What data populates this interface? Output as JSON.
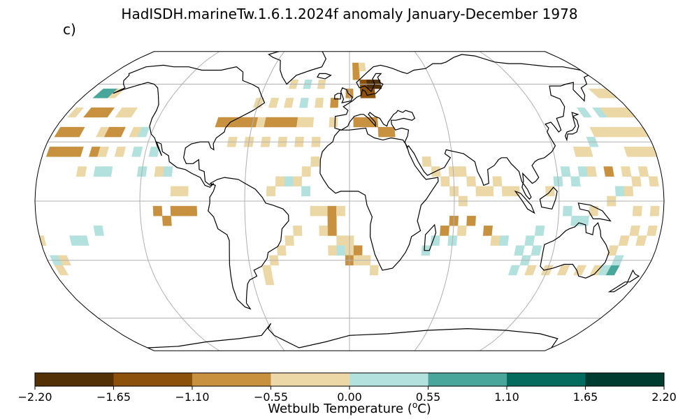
{
  "title": "HadISDH.marineTw.1.6.1.2024f anomaly January-December 1978",
  "panel_label": "c)",
  "map": {
    "projection": "Robinson",
    "graticule": "on",
    "land": "outline",
    "missing_data": "blank",
    "grid_cells": [
      {
        "lon": -170,
        "lat": 55,
        "value": 0.8
      },
      {
        "lon": -165,
        "lat": 55,
        "value": 0.8
      },
      {
        "lon": -160,
        "lat": 55,
        "value": -0.3
      },
      {
        "lon": -175,
        "lat": 45,
        "value": -0.3
      },
      {
        "lon": -165,
        "lat": 45,
        "value": -0.7
      },
      {
        "lon": -160,
        "lat": 45,
        "value": -0.7
      },
      {
        "lon": -155,
        "lat": 45,
        "value": -0.7
      },
      {
        "lon": -145,
        "lat": 45,
        "value": -0.3
      },
      {
        "lon": -140,
        "lat": 45,
        "value": -0.3
      },
      {
        "lon": -175,
        "lat": 35,
        "value": -0.7
      },
      {
        "lon": -170,
        "lat": 35,
        "value": -0.7
      },
      {
        "lon": -165,
        "lat": 35,
        "value": -0.7
      },
      {
        "lon": -150,
        "lat": 35,
        "value": -0.3
      },
      {
        "lon": -145,
        "lat": 35,
        "value": -0.7
      },
      {
        "lon": -140,
        "lat": 35,
        "value": -0.7
      },
      {
        "lon": -130,
        "lat": 35,
        "value": -0.3
      },
      {
        "lon": -125,
        "lat": 35,
        "value": 0.3
      },
      {
        "lon": -175,
        "lat": 25,
        "value": -0.7
      },
      {
        "lon": -170,
        "lat": 25,
        "value": -0.7
      },
      {
        "lon": -165,
        "lat": 25,
        "value": -0.7
      },
      {
        "lon": -160,
        "lat": 25,
        "value": -0.7
      },
      {
        "lon": -150,
        "lat": 25,
        "value": -0.7
      },
      {
        "lon": -145,
        "lat": 25,
        "value": -0.3
      },
      {
        "lon": -135,
        "lat": 25,
        "value": -0.3
      },
      {
        "lon": -125,
        "lat": 25,
        "value": 0.3
      },
      {
        "lon": -115,
        "lat": 25,
        "value": 0.3
      },
      {
        "lon": -155,
        "lat": 15,
        "value": -0.3
      },
      {
        "lon": -145,
        "lat": 15,
        "value": 0.3
      },
      {
        "lon": -140,
        "lat": 15,
        "value": 0.3
      },
      {
        "lon": -120,
        "lat": 15,
        "value": 0.3
      },
      {
        "lon": -110,
        "lat": 15,
        "value": -0.3
      },
      {
        "lon": -105,
        "lat": 15,
        "value": 0.3
      },
      {
        "lon": -100,
        "lat": 5,
        "value": -0.3
      },
      {
        "lon": -95,
        "lat": 5,
        "value": -0.3
      },
      {
        "lon": -110,
        "lat": -5,
        "value": -0.7
      },
      {
        "lon": -100,
        "lat": -5,
        "value": -0.7
      },
      {
        "lon": -95,
        "lat": -5,
        "value": -0.7
      },
      {
        "lon": -90,
        "lat": -5,
        "value": -0.7
      },
      {
        "lon": -105,
        "lat": -10,
        "value": -0.7
      },
      {
        "lon": -180,
        "lat": -20,
        "value": -0.3
      },
      {
        "lon": -160,
        "lat": -20,
        "value": 0.3
      },
      {
        "lon": -155,
        "lat": -20,
        "value": 0.3
      },
      {
        "lon": -145,
        "lat": -15,
        "value": 0.3
      },
      {
        "lon": -175,
        "lat": -30,
        "value": 0.3
      },
      {
        "lon": -170,
        "lat": -30,
        "value": -0.3
      },
      {
        "lon": -175,
        "lat": -35,
        "value": -0.3
      },
      {
        "lon": -80,
        "lat": 40,
        "value": -0.7
      },
      {
        "lon": -75,
        "lat": 40,
        "value": -0.7
      },
      {
        "lon": -70,
        "lat": 40,
        "value": -0.7
      },
      {
        "lon": -65,
        "lat": 40,
        "value": -0.7
      },
      {
        "lon": -60,
        "lat": 40,
        "value": -0.7
      },
      {
        "lon": -55,
        "lat": 40,
        "value": -0.3
      },
      {
        "lon": -50,
        "lat": 40,
        "value": -0.7
      },
      {
        "lon": -45,
        "lat": 40,
        "value": -0.7
      },
      {
        "lon": -40,
        "lat": 40,
        "value": -0.7
      },
      {
        "lon": -35,
        "lat": 40,
        "value": -0.7
      },
      {
        "lon": -30,
        "lat": 40,
        "value": -0.3
      },
      {
        "lon": -25,
        "lat": 40,
        "value": -0.3
      },
      {
        "lon": -70,
        "lat": 30,
        "value": -0.3
      },
      {
        "lon": -60,
        "lat": 30,
        "value": -0.3
      },
      {
        "lon": -50,
        "lat": 30,
        "value": -0.3
      },
      {
        "lon": -40,
        "lat": 30,
        "value": -0.3
      },
      {
        "lon": -30,
        "lat": 30,
        "value": -0.3
      },
      {
        "lon": -20,
        "lat": 30,
        "value": -0.3
      },
      {
        "lon": -60,
        "lat": 50,
        "value": -0.3
      },
      {
        "lon": -50,
        "lat": 50,
        "value": -0.3
      },
      {
        "lon": -40,
        "lat": 50,
        "value": -0.3
      },
      {
        "lon": -30,
        "lat": 50,
        "value": 0.3
      },
      {
        "lon": -20,
        "lat": 50,
        "value": -0.3
      },
      {
        "lon": -10,
        "lat": 50,
        "value": -0.7
      },
      {
        "lon": -40,
        "lat": 60,
        "value": -0.3
      },
      {
        "lon": -30,
        "lat": 60,
        "value": 0.3
      },
      {
        "lon": -20,
        "lat": 60,
        "value": -0.3
      },
      {
        "lon": 5,
        "lat": 70,
        "value": -0.7
      },
      {
        "lon": 10,
        "lat": 70,
        "value": -0.3
      },
      {
        "lon": 5,
        "lat": 65,
        "value": -0.7
      },
      {
        "lon": 10,
        "lat": 60,
        "value": -1.3
      },
      {
        "lon": 15,
        "lat": 60,
        "value": -2.0
      },
      {
        "lon": 20,
        "lat": 60,
        "value": -2.0
      },
      {
        "lon": 10,
        "lat": 55,
        "value": -1.3
      },
      {
        "lon": 15,
        "lat": 55,
        "value": -1.3
      },
      {
        "lon": 0,
        "lat": 55,
        "value": -0.7
      },
      {
        "lon": 5,
        "lat": 40,
        "value": -0.7
      },
      {
        "lon": 10,
        "lat": 40,
        "value": -0.7
      },
      {
        "lon": 15,
        "lat": 40,
        "value": -0.7
      },
      {
        "lon": 20,
        "lat": 35,
        "value": -0.7
      },
      {
        "lon": 25,
        "lat": 35,
        "value": -0.7
      },
      {
        "lon": -10,
        "lat": 40,
        "value": -0.3
      },
      {
        "lon": -20,
        "lat": 20,
        "value": -0.3
      },
      {
        "lon": -25,
        "lat": 15,
        "value": -0.3
      },
      {
        "lon": -30,
        "lat": 10,
        "value": -0.3
      },
      {
        "lon": -25,
        "lat": 5,
        "value": 0.3
      },
      {
        "lon": -35,
        "lat": 10,
        "value": 0.3
      },
      {
        "lon": -40,
        "lat": 10,
        "value": -0.3
      },
      {
        "lon": -45,
        "lat": 5,
        "value": -0.3
      },
      {
        "lon": -20,
        "lat": -5,
        "value": -0.3
      },
      {
        "lon": -15,
        "lat": -5,
        "value": -0.3
      },
      {
        "lon": -10,
        "lat": -5,
        "value": -0.7
      },
      {
        "lon": -5,
        "lat": -5,
        "value": -0.3
      },
      {
        "lon": -10,
        "lat": -10,
        "value": -0.7
      },
      {
        "lon": -15,
        "lat": -15,
        "value": -0.3
      },
      {
        "lon": -10,
        "lat": -15,
        "value": -0.7
      },
      {
        "lon": -5,
        "lat": -20,
        "value": -0.3
      },
      {
        "lon": 0,
        "lat": -20,
        "value": -0.3
      },
      {
        "lon": -10,
        "lat": -25,
        "value": -0.3
      },
      {
        "lon": -5,
        "lat": -25,
        "value": 0.3
      },
      {
        "lon": 0,
        "lat": -25,
        "value": -0.3
      },
      {
        "lon": 5,
        "lat": -25,
        "value": -0.7
      },
      {
        "lon": 0,
        "lat": -30,
        "value": -0.7
      },
      {
        "lon": 5,
        "lat": -30,
        "value": -0.3
      },
      {
        "lon": 10,
        "lat": -30,
        "value": -0.3
      },
      {
        "lon": 15,
        "lat": -35,
        "value": -0.3
      },
      {
        "lon": -30,
        "lat": -15,
        "value": -0.3
      },
      {
        "lon": -35,
        "lat": -20,
        "value": -0.3
      },
      {
        "lon": -40,
        "lat": -25,
        "value": -0.3
      },
      {
        "lon": -45,
        "lat": -30,
        "value": -0.3
      },
      {
        "lon": -50,
        "lat": -35,
        "value": -0.3
      },
      {
        "lon": -50,
        "lat": -40,
        "value": -0.3
      },
      {
        "lon": 45,
        "lat": 20,
        "value": -0.3
      },
      {
        "lon": 50,
        "lat": 15,
        "value": -0.3
      },
      {
        "lon": 55,
        "lat": 10,
        "value": -0.3
      },
      {
        "lon": 60,
        "lat": 15,
        "value": -0.3
      },
      {
        "lon": 65,
        "lat": 15,
        "value": -0.3
      },
      {
        "lon": 70,
        "lat": 10,
        "value": -0.3
      },
      {
        "lon": 75,
        "lat": 5,
        "value": -0.3
      },
      {
        "lon": 80,
        "lat": 5,
        "value": -0.3
      },
      {
        "lon": 85,
        "lat": 10,
        "value": -0.3
      },
      {
        "lon": 90,
        "lat": 5,
        "value": -0.3
      },
      {
        "lon": 95,
        "lat": 5,
        "value": -0.3
      },
      {
        "lon": 60,
        "lat": 5,
        "value": -0.3
      },
      {
        "lon": 65,
        "lat": 0,
        "value": -0.3
      },
      {
        "lon": 60,
        "lat": -10,
        "value": -0.7
      },
      {
        "lon": 55,
        "lat": -15,
        "value": -0.7
      },
      {
        "lon": 65,
        "lat": -15,
        "value": -0.3
      },
      {
        "lon": 70,
        "lat": -10,
        "value": -0.7
      },
      {
        "lon": 80,
        "lat": -15,
        "value": -0.7
      },
      {
        "lon": 85,
        "lat": -20,
        "value": -0.3
      },
      {
        "lon": 60,
        "lat": -20,
        "value": 0.3
      },
      {
        "lon": 50,
        "lat": -20,
        "value": 0.3
      },
      {
        "lon": 45,
        "lat": -25,
        "value": 0.3
      },
      {
        "lon": 90,
        "lat": -20,
        "value": 0.3
      },
      {
        "lon": 100,
        "lat": -25,
        "value": 0.3
      },
      {
        "lon": 105,
        "lat": -20,
        "value": 0.3
      },
      {
        "lon": 110,
        "lat": -15,
        "value": 0.3
      },
      {
        "lon": 110,
        "lat": -25,
        "value": 0.3
      },
      {
        "lon": 105,
        "lat": -30,
        "value": 0.3
      },
      {
        "lon": 100,
        "lat": -35,
        "value": 0.3
      },
      {
        "lon": 110,
        "lat": -35,
        "value": -0.3
      },
      {
        "lon": 120,
        "lat": -35,
        "value": -0.3
      },
      {
        "lon": 130,
        "lat": -35,
        "value": -0.3
      },
      {
        "lon": 140,
        "lat": -35,
        "value": -0.3
      },
      {
        "lon": 150,
        "lat": -35,
        "value": -0.3
      },
      {
        "lon": 155,
        "lat": -35,
        "value": 0.3
      },
      {
        "lon": 160,
        "lat": -35,
        "value": 0.8
      },
      {
        "lon": 160,
        "lat": -30,
        "value": 0.3
      },
      {
        "lon": 155,
        "lat": -25,
        "value": -0.3
      },
      {
        "lon": 160,
        "lat": -20,
        "value": -0.3
      },
      {
        "lon": 165,
        "lat": -15,
        "value": -0.3
      },
      {
        "lon": 170,
        "lat": -20,
        "value": -0.3
      },
      {
        "lon": 175,
        "lat": -15,
        "value": -0.3
      },
      {
        "lon": 175,
        "lat": -5,
        "value": -0.3
      },
      {
        "lon": 165,
        "lat": -5,
        "value": -0.3
      },
      {
        "lon": 125,
        "lat": -5,
        "value": 0.3
      },
      {
        "lon": 130,
        "lat": -10,
        "value": 0.3
      },
      {
        "lon": 135,
        "lat": -10,
        "value": 0.3
      },
      {
        "lon": 140,
        "lat": -5,
        "value": -0.3
      },
      {
        "lon": 115,
        "lat": 5,
        "value": -0.3
      },
      {
        "lon": 120,
        "lat": 10,
        "value": 0.3
      },
      {
        "lon": 125,
        "lat": 15,
        "value": 0.3
      },
      {
        "lon": 130,
        "lat": 10,
        "value": 0.3
      },
      {
        "lon": 135,
        "lat": 15,
        "value": 0.3
      },
      {
        "lon": 140,
        "lat": 15,
        "value": -0.3
      },
      {
        "lon": 150,
        "lat": 15,
        "value": -0.7
      },
      {
        "lon": 160,
        "lat": 15,
        "value": -0.3
      },
      {
        "lon": 165,
        "lat": 10,
        "value": -0.3
      },
      {
        "lon": 170,
        "lat": 15,
        "value": -0.3
      },
      {
        "lon": 175,
        "lat": 10,
        "value": -0.3
      },
      {
        "lon": 155,
        "lat": 5,
        "value": 0.3
      },
      {
        "lon": 160,
        "lat": 5,
        "value": -0.3
      },
      {
        "lon": 150,
        "lat": 0,
        "value": -0.3
      },
      {
        "lon": 135,
        "lat": 25,
        "value": -0.3
      },
      {
        "lon": 140,
        "lat": 25,
        "value": -0.3
      },
      {
        "lon": 145,
        "lat": 30,
        "value": 0.3
      },
      {
        "lon": 150,
        "lat": 35,
        "value": -0.3
      },
      {
        "lon": 155,
        "lat": 35,
        "value": -0.3
      },
      {
        "lon": 160,
        "lat": 35,
        "value": -0.3
      },
      {
        "lon": 165,
        "lat": 35,
        "value": -0.3
      },
      {
        "lon": 170,
        "lat": 35,
        "value": -0.3
      },
      {
        "lon": 175,
        "lat": 35,
        "value": -0.3
      },
      {
        "lon": 150,
        "lat": 45,
        "value": 0.3
      },
      {
        "lon": 160,
        "lat": 45,
        "value": 0.3
      },
      {
        "lon": 165,
        "lat": 45,
        "value": -0.3
      },
      {
        "lon": 170,
        "lat": 45,
        "value": -0.3
      },
      {
        "lon": 175,
        "lat": 45,
        "value": -0.3
      },
      {
        "lon": 180,
        "lat": 45,
        "value": -0.3
      },
      {
        "lon": 170,
        "lat": 55,
        "value": -0.3
      },
      {
        "lon": 175,
        "lat": 55,
        "value": -0.3
      },
      {
        "lon": 180,
        "lat": 55,
        "value": -0.3
      },
      {
        "lon": 180,
        "lat": 35,
        "value": -0.3
      },
      {
        "lon": 180,
        "lat": 25,
        "value": -0.3
      },
      {
        "lon": 175,
        "lat": 25,
        "value": -0.3
      },
      {
        "lon": 170,
        "lat": 25,
        "value": -0.3
      },
      {
        "lon": 165,
        "lat": 25,
        "value": -0.3
      }
    ]
  },
  "colorbar": {
    "label_main": "Wetbulb Temperature (",
    "label_sup": "o",
    "label_end": "C)",
    "bounds": [
      -2.2,
      -1.65,
      -1.1,
      -0.55,
      0.0,
      0.55,
      1.1,
      1.65,
      2.2
    ],
    "tick_labels": [
      "−2.20",
      "−1.65",
      "−1.10",
      "−0.55",
      "0.00",
      "0.55",
      "1.10",
      "1.65",
      "2.20"
    ],
    "colors": [
      "#543005",
      "#8c510a",
      "#c8913f",
      "#ecd7a6",
      "#b3e1dd",
      "#49a69b",
      "#046b5e",
      "#003c30"
    ]
  }
}
